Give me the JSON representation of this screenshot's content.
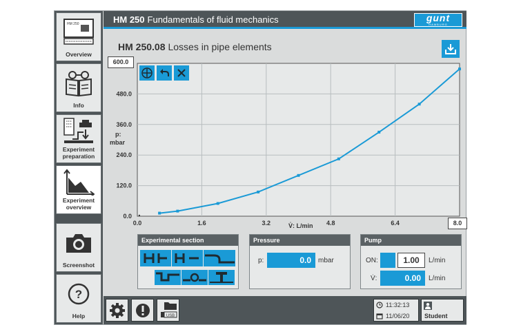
{
  "header": {
    "model": "HM 250",
    "title": "Fundamentals of fluid mechanics",
    "logo_text": "gunt",
    "logo_sub": "HAMBURG"
  },
  "main": {
    "model": "HM 250.08",
    "title": "Losses in pipe elements"
  },
  "sidebar": {
    "items": [
      {
        "label": "Overview",
        "screen_text": "HM 250"
      },
      {
        "label": "Info"
      },
      {
        "label": "Experiment preparation"
      },
      {
        "label": "Experiment overview"
      },
      {
        "label": "Screenshot"
      },
      {
        "label": "Help"
      }
    ]
  },
  "chart_data": {
    "type": "line",
    "xlim": [
      0.0,
      8.0
    ],
    "ylim": [
      0.0,
      600.0
    ],
    "x_ticks": [
      "0.0",
      "1.6",
      "3.2",
      "4.8",
      "6.4"
    ],
    "y_ticks": [
      "0.0",
      "120.0",
      "240.0",
      "360.0",
      "480.0"
    ],
    "xmax_box": "8.0",
    "ymax_box": "600.0",
    "xlabel": "V̇: L/min",
    "ylabel_1": "p:",
    "ylabel_2": "mbar",
    "color": "#1a9ad6",
    "series": [
      {
        "x": [
          0.55,
          1.0,
          2.0,
          3.0,
          4.0,
          5.0,
          6.0,
          7.0,
          8.0
        ],
        "y": [
          12,
          20,
          50,
          95,
          160,
          225,
          330,
          440,
          578
        ]
      }
    ],
    "origin_point": {
      "x": 0.05,
      "y": 3
    }
  },
  "panels": {
    "experimental_section": {
      "title": "Experimental section"
    },
    "pressure": {
      "title": "Pressure",
      "label": "p:",
      "value": "0.0",
      "unit": "mbar"
    },
    "pump": {
      "title": "Pump",
      "on_label": "ON:",
      "setpoint": "1.00",
      "setpoint_unit": "L/min",
      "flow_label": "V̇:",
      "flow_value": "0.00",
      "flow_unit": "L/min"
    }
  },
  "bottom": {
    "usb_label": "USB",
    "time": "11:32:13",
    "date": "11/06/20",
    "user": "Student"
  }
}
